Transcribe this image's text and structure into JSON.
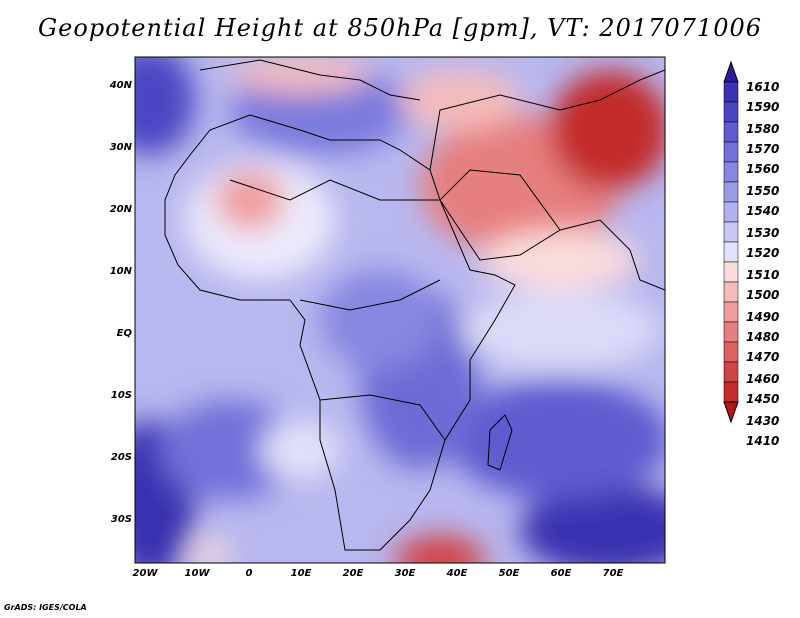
{
  "title": "Geopotential Height at 850hPa [gpm], VT: 2017071006",
  "credit": "GrADS: IGES/COLA",
  "lat_labels": [
    "40N",
    "30N",
    "20N",
    "10N",
    "EQ",
    "10S",
    "20S",
    "30S"
  ],
  "lon_labels": [
    "20W",
    "10W",
    "0",
    "10E",
    "20E",
    "30E",
    "40E",
    "50E",
    "60E",
    "70E"
  ],
  "colorbar_levels": [
    "1610",
    "1590",
    "1580",
    "1570",
    "1560",
    "1550",
    "1540",
    "1530",
    "1520",
    "1510",
    "1500",
    "1490",
    "1480",
    "1470",
    "1460",
    "1450",
    "1430",
    "1410"
  ],
  "colorbar_colors": [
    "#2b1c9b",
    "#3a32b0",
    "#4b47c2",
    "#5e5ccf",
    "#7271d9",
    "#8786e1",
    "#9c9be8",
    "#b2b1ef",
    "#c9c8f5",
    "#e2e1fa",
    "#fbdcdc",
    "#f5bcbc",
    "#ee9d9d",
    "#e67f7f",
    "#dc6262",
    "#d04545",
    "#c32c2c",
    "#b41515"
  ]
}
